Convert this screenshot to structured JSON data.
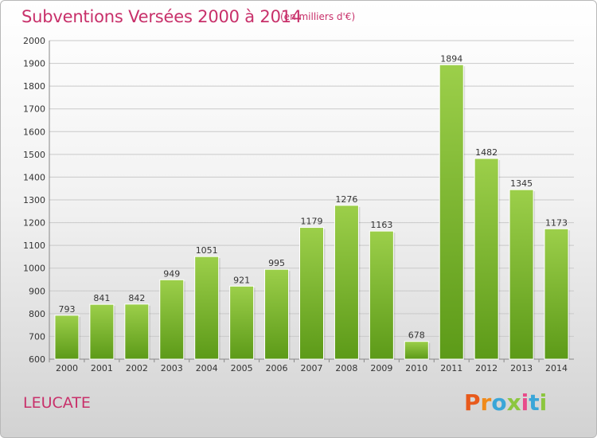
{
  "header": {
    "title": "Subventions Versées 2000 à 2014",
    "subtitle": "(en milliers d'€)"
  },
  "location": "LEUCATE",
  "brand": {
    "name": "Proxiti",
    "letters": [
      {
        "ch": "P",
        "color": "#e85a1c"
      },
      {
        "ch": "r",
        "color": "#f08a1a"
      },
      {
        "ch": "o",
        "color": "#3aa6d8"
      },
      {
        "ch": "x",
        "color": "#8cc63f"
      },
      {
        "ch": "i",
        "color": "#e84b8a"
      },
      {
        "ch": "t",
        "color": "#3aa6d8"
      },
      {
        "ch": "i",
        "color": "#8cc63f"
      }
    ]
  },
  "chart_data": {
    "type": "bar",
    "categories": [
      "2000",
      "2001",
      "2002",
      "2003",
      "2004",
      "2005",
      "2006",
      "2007",
      "2008",
      "2009",
      "2010",
      "2011",
      "2012",
      "2013",
      "2014"
    ],
    "values": [
      793,
      841,
      842,
      949,
      1051,
      921,
      995,
      1179,
      1276,
      1163,
      678,
      1894,
      1482,
      1345,
      1173
    ],
    "ylim": [
      600,
      2000
    ],
    "yticks": [
      600,
      700,
      800,
      900,
      1000,
      1100,
      1200,
      1300,
      1400,
      1500,
      1600,
      1700,
      1800,
      1900,
      2000
    ],
    "grid": true,
    "bar_color_top": "#9ccf4a",
    "bar_color_bottom": "#5c9a18"
  }
}
